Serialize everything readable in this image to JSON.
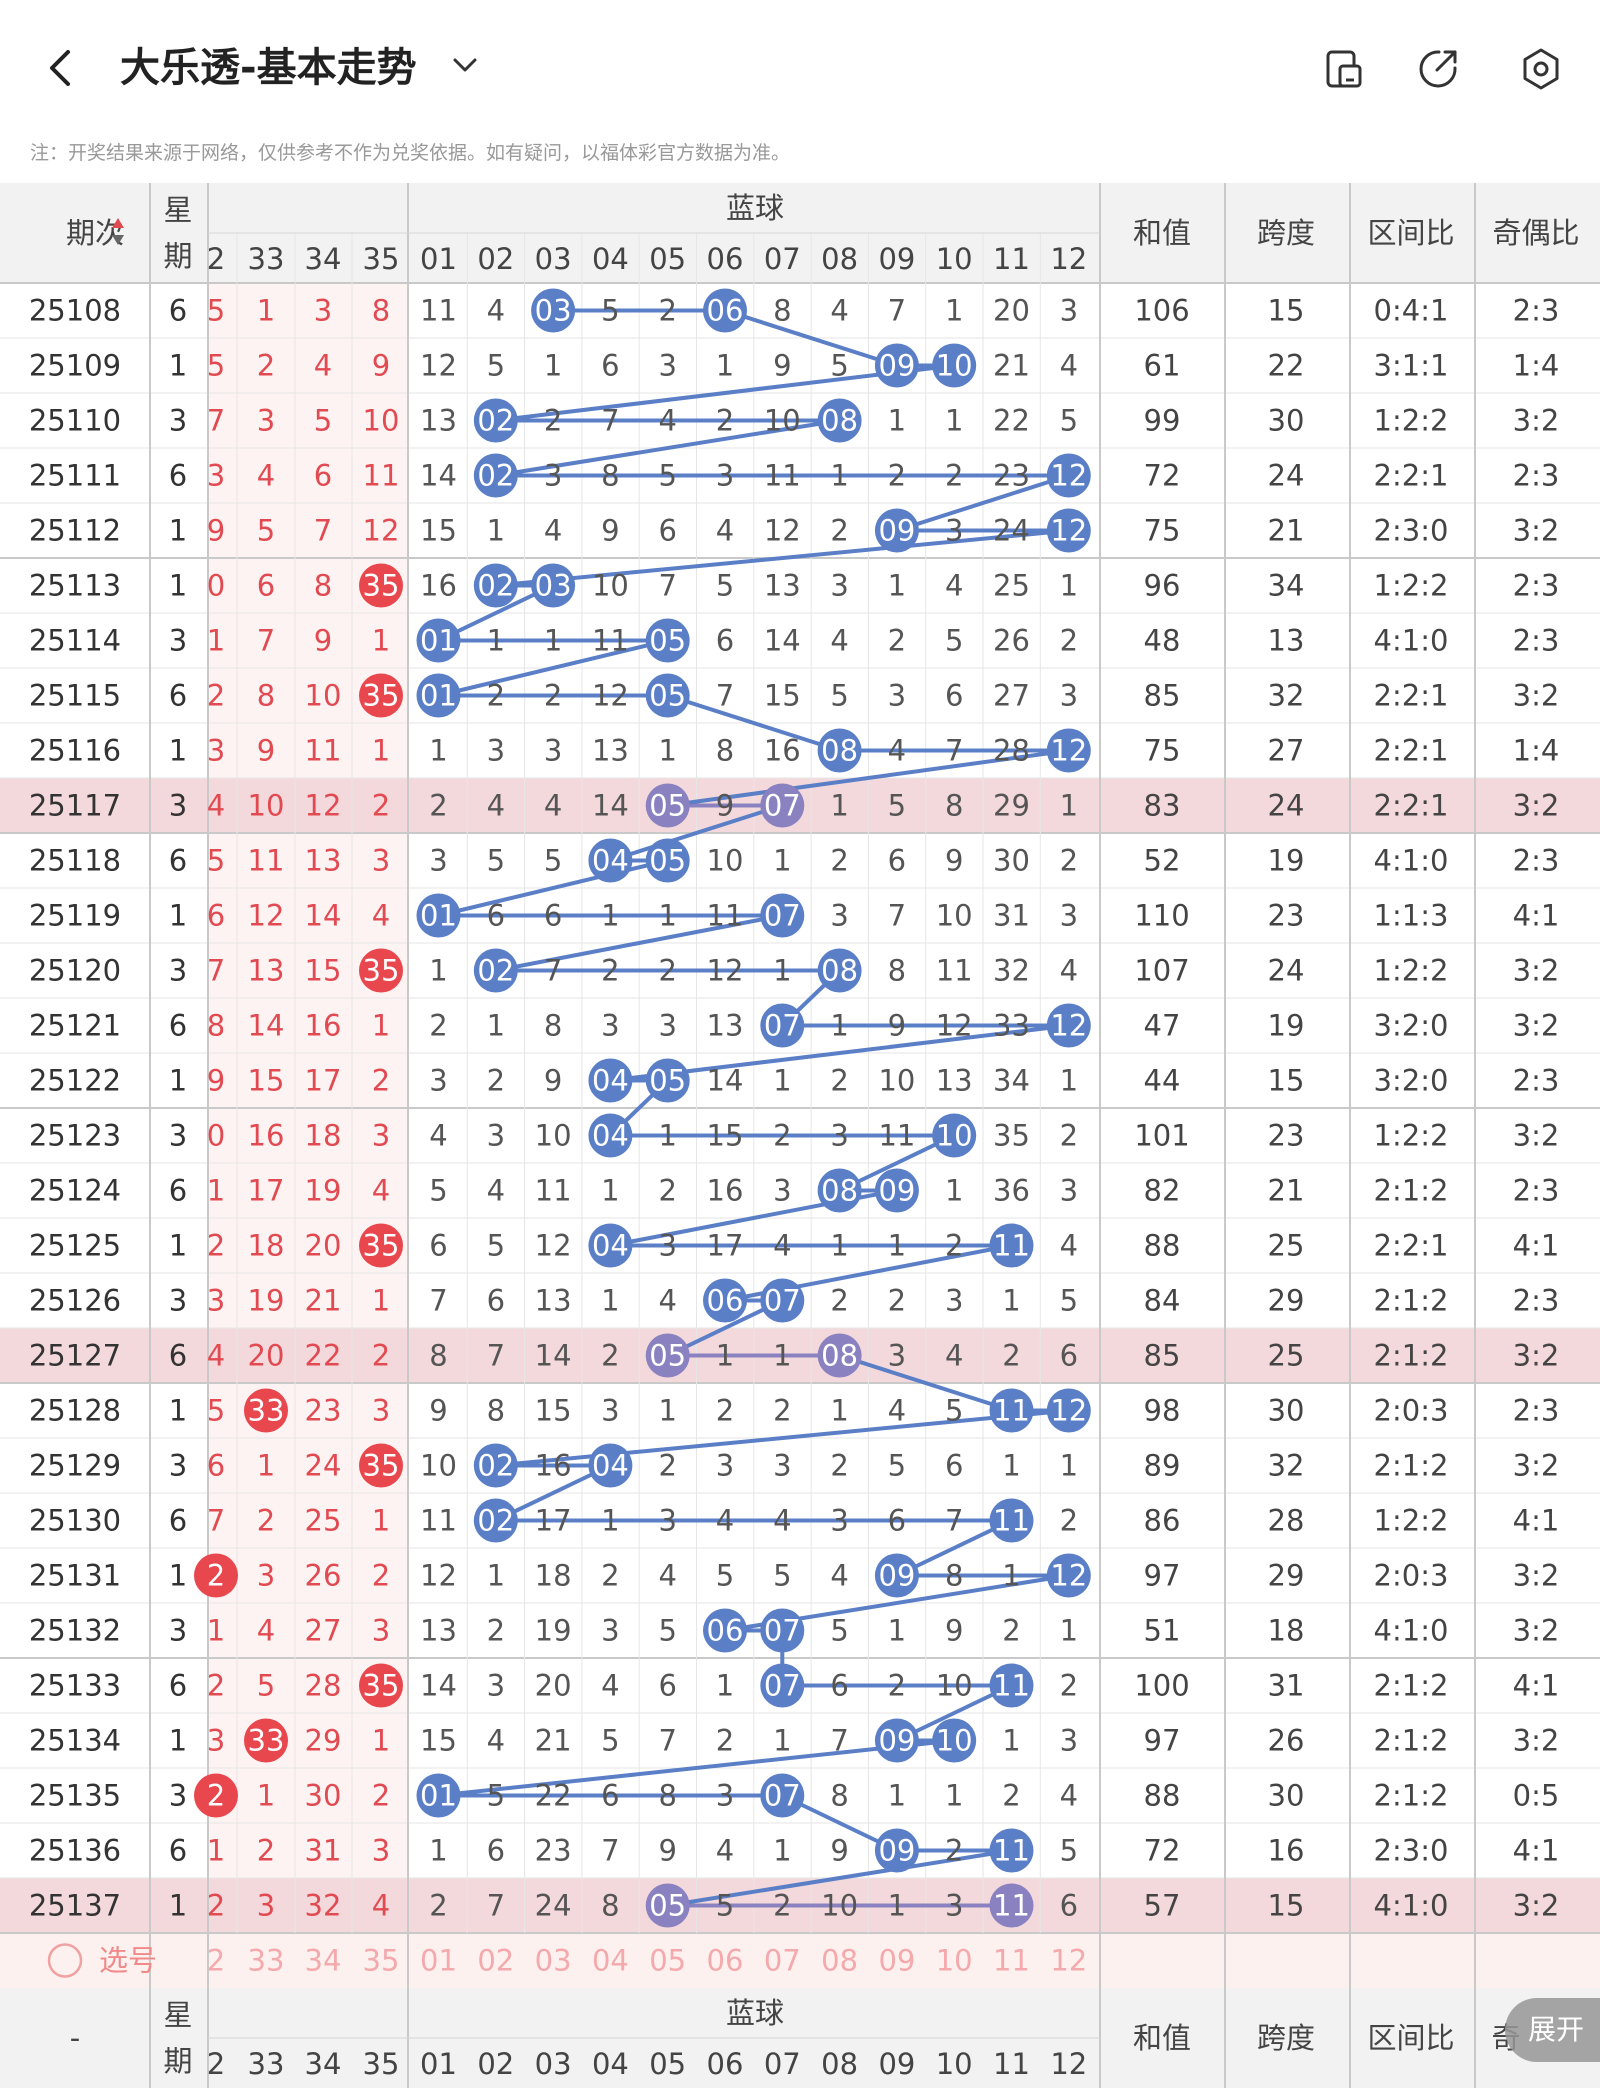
{
  "header": {
    "title": "大乐透-基本走势",
    "back_icon": "chevron-left-icon",
    "dropdown_icon": "chevron-down-icon",
    "actions": [
      "screen-split-icon",
      "share-icon",
      "settings-icon"
    ]
  },
  "notice": "注：开奖结果来源于网络，仅供参考不作为兑奖依据。如有疑问，以福体彩官方数据为准。",
  "table": {
    "col_period": "期次",
    "col_week_top": "星",
    "col_week_bottom": "期",
    "front_partial_header": "2",
    "front_headers": [
      "33",
      "34",
      "35"
    ],
    "blue_title": "蓝球",
    "blue_headers": [
      "01",
      "02",
      "03",
      "04",
      "05",
      "06",
      "07",
      "08",
      "09",
      "10",
      "11",
      "12"
    ],
    "stats_headers": [
      "和值",
      "跨度",
      "区间比",
      "奇偶比"
    ],
    "rows": [
      {
        "p": "25108",
        "w": "6",
        "pc": "5",
        "f": [
          "1",
          "3",
          "8"
        ],
        "fh": [],
        "b": [
          11,
          4,
          0,
          5,
          2,
          0,
          8,
          4,
          7,
          1,
          20,
          3
        ],
        "hits": [
          3,
          6
        ],
        "s": [
          "106",
          "15",
          "0:4:1",
          "2:3"
        ]
      },
      {
        "p": "25109",
        "w": "1",
        "pc": "5",
        "f": [
          "2",
          "4",
          "9"
        ],
        "fh": [],
        "b": [
          12,
          5,
          1,
          6,
          3,
          1,
          9,
          5,
          0,
          0,
          21,
          4
        ],
        "hits": [
          9,
          10
        ],
        "s": [
          "61",
          "22",
          "3:1:1",
          "1:4"
        ]
      },
      {
        "p": "25110",
        "w": "3",
        "pc": "7",
        "f": [
          "3",
          "5",
          "10"
        ],
        "fh": [],
        "b": [
          13,
          0,
          2,
          7,
          4,
          2,
          10,
          0,
          1,
          1,
          22,
          5
        ],
        "hits": [
          2,
          8
        ],
        "s": [
          "99",
          "30",
          "1:2:2",
          "3:2"
        ]
      },
      {
        "p": "25111",
        "w": "6",
        "pc": "3",
        "f": [
          "4",
          "6",
          "11"
        ],
        "fh": [],
        "b": [
          14,
          0,
          3,
          8,
          5,
          3,
          11,
          1,
          2,
          2,
          23,
          0
        ],
        "hits": [
          2,
          12
        ],
        "s": [
          "72",
          "24",
          "2:2:1",
          "2:3"
        ]
      },
      {
        "p": "25112",
        "w": "1",
        "pc": "9",
        "f": [
          "5",
          "7",
          "12"
        ],
        "fh": [],
        "b": [
          15,
          1,
          4,
          9,
          6,
          4,
          12,
          2,
          0,
          3,
          24,
          0
        ],
        "hits": [
          9,
          12
        ],
        "s": [
          "75",
          "21",
          "2:3:0",
          "3:2"
        ]
      },
      {
        "p": "25113",
        "w": "1",
        "pc": "0",
        "f": [
          "6",
          "8",
          "35"
        ],
        "fh": [
          2
        ],
        "b": [
          16,
          0,
          0,
          10,
          7,
          5,
          13,
          3,
          1,
          4,
          25,
          1
        ],
        "hits": [
          2,
          3
        ],
        "s": [
          "96",
          "34",
          "1:2:2",
          "2:3"
        ]
      },
      {
        "p": "25114",
        "w": "3",
        "pc": "1",
        "f": [
          "7",
          "9",
          "1"
        ],
        "fh": [],
        "b": [
          0,
          1,
          1,
          11,
          0,
          6,
          14,
          4,
          2,
          5,
          26,
          2
        ],
        "hits": [
          1,
          5
        ],
        "s": [
          "48",
          "13",
          "4:1:0",
          "2:3"
        ]
      },
      {
        "p": "25115",
        "w": "6",
        "pc": "2",
        "f": [
          "8",
          "10",
          "35"
        ],
        "fh": [
          2
        ],
        "b": [
          0,
          2,
          2,
          12,
          0,
          7,
          15,
          5,
          3,
          6,
          27,
          3
        ],
        "hits": [
          1,
          5
        ],
        "s": [
          "85",
          "32",
          "2:2:1",
          "3:2"
        ]
      },
      {
        "p": "25116",
        "w": "1",
        "pc": "3",
        "f": [
          "9",
          "11",
          "1"
        ],
        "fh": [],
        "b": [
          1,
          3,
          3,
          13,
          1,
          8,
          16,
          0,
          4,
          7,
          28,
          0
        ],
        "hits": [
          8,
          12
        ],
        "s": [
          "75",
          "27",
          "2:2:1",
          "1:4"
        ]
      },
      {
        "p": "25117",
        "w": "3",
        "pc": "4",
        "f": [
          "10",
          "12",
          "2"
        ],
        "fh": [],
        "b": [
          2,
          4,
          4,
          14,
          0,
          9,
          0,
          1,
          5,
          8,
          29,
          1
        ],
        "hits": [
          5,
          7
        ],
        "s": [
          "83",
          "24",
          "2:2:1",
          "3:2"
        ],
        "hl": true
      },
      {
        "p": "25118",
        "w": "6",
        "pc": "5",
        "f": [
          "11",
          "13",
          "3"
        ],
        "fh": [],
        "b": [
          3,
          5,
          5,
          0,
          0,
          10,
          1,
          2,
          6,
          9,
          30,
          2
        ],
        "hits": [
          4,
          5
        ],
        "s": [
          "52",
          "19",
          "4:1:0",
          "2:3"
        ]
      },
      {
        "p": "25119",
        "w": "1",
        "pc": "6",
        "f": [
          "12",
          "14",
          "4"
        ],
        "fh": [],
        "b": [
          0,
          6,
          6,
          1,
          1,
          11,
          0,
          3,
          7,
          10,
          31,
          3
        ],
        "hits": [
          1,
          7
        ],
        "s": [
          "110",
          "23",
          "1:1:3",
          "4:1"
        ]
      },
      {
        "p": "25120",
        "w": "3",
        "pc": "7",
        "f": [
          "13",
          "15",
          "35"
        ],
        "fh": [
          2
        ],
        "b": [
          1,
          0,
          7,
          2,
          2,
          12,
          1,
          0,
          8,
          11,
          32,
          4
        ],
        "hits": [
          2,
          8
        ],
        "s": [
          "107",
          "24",
          "1:2:2",
          "3:2"
        ]
      },
      {
        "p": "25121",
        "w": "6",
        "pc": "8",
        "f": [
          "14",
          "16",
          "1"
        ],
        "fh": [],
        "b": [
          2,
          1,
          8,
          3,
          3,
          13,
          0,
          1,
          9,
          12,
          33,
          0
        ],
        "hits": [
          7,
          12
        ],
        "s": [
          "47",
          "19",
          "3:2:0",
          "3:2"
        ]
      },
      {
        "p": "25122",
        "w": "1",
        "pc": "9",
        "f": [
          "15",
          "17",
          "2"
        ],
        "fh": [],
        "b": [
          3,
          2,
          9,
          0,
          0,
          14,
          1,
          2,
          10,
          13,
          34,
          1
        ],
        "hits": [
          4,
          5
        ],
        "s": [
          "44",
          "15",
          "3:2:0",
          "2:3"
        ]
      },
      {
        "p": "25123",
        "w": "3",
        "pc": "0",
        "f": [
          "16",
          "18",
          "3"
        ],
        "fh": [],
        "b": [
          4,
          3,
          10,
          0,
          1,
          15,
          2,
          3,
          11,
          0,
          35,
          2
        ],
        "hits": [
          4,
          10
        ],
        "s": [
          "101",
          "23",
          "1:2:2",
          "3:2"
        ]
      },
      {
        "p": "25124",
        "w": "6",
        "pc": "1",
        "f": [
          "17",
          "19",
          "4"
        ],
        "fh": [],
        "b": [
          5,
          4,
          11,
          1,
          2,
          16,
          3,
          0,
          0,
          1,
          36,
          3
        ],
        "hits": [
          8,
          9
        ],
        "s": [
          "82",
          "21",
          "2:1:2",
          "2:3"
        ]
      },
      {
        "p": "25125",
        "w": "1",
        "pc": "2",
        "f": [
          "18",
          "20",
          "35"
        ],
        "fh": [
          2
        ],
        "b": [
          6,
          5,
          12,
          0,
          3,
          17,
          4,
          1,
          1,
          2,
          0,
          4
        ],
        "hits": [
          4,
          11
        ],
        "s": [
          "88",
          "25",
          "2:2:1",
          "4:1"
        ]
      },
      {
        "p": "25126",
        "w": "3",
        "pc": "3",
        "f": [
          "19",
          "21",
          "1"
        ],
        "fh": [],
        "b": [
          7,
          6,
          13,
          1,
          4,
          0,
          0,
          2,
          2,
          3,
          1,
          5
        ],
        "hits": [
          6,
          7
        ],
        "s": [
          "84",
          "29",
          "2:1:2",
          "2:3"
        ]
      },
      {
        "p": "25127",
        "w": "6",
        "pc": "4",
        "f": [
          "20",
          "22",
          "2"
        ],
        "fh": [],
        "b": [
          8,
          7,
          14,
          2,
          0,
          1,
          1,
          0,
          3,
          4,
          2,
          6
        ],
        "hits": [
          5,
          8
        ],
        "s": [
          "85",
          "25",
          "2:1:2",
          "3:2"
        ],
        "hl": true
      },
      {
        "p": "25128",
        "w": "1",
        "pc": "5",
        "f": [
          "33",
          "23",
          "3"
        ],
        "fh": [
          0
        ],
        "b": [
          9,
          8,
          15,
          3,
          1,
          2,
          2,
          1,
          4,
          5,
          0,
          0
        ],
        "hits": [
          11,
          12
        ],
        "s": [
          "98",
          "30",
          "2:0:3",
          "2:3"
        ]
      },
      {
        "p": "25129",
        "w": "3",
        "pc": "6",
        "f": [
          "1",
          "24",
          "35"
        ],
        "fh": [
          2
        ],
        "b": [
          10,
          0,
          16,
          0,
          2,
          3,
          3,
          2,
          5,
          6,
          1,
          1
        ],
        "hits": [
          2,
          4
        ],
        "s": [
          "89",
          "32",
          "2:1:2",
          "3:2"
        ]
      },
      {
        "p": "25130",
        "w": "6",
        "pc": "7",
        "f": [
          "2",
          "25",
          "1"
        ],
        "fh": [],
        "b": [
          11,
          0,
          17,
          1,
          3,
          4,
          4,
          3,
          6,
          7,
          0,
          2
        ],
        "hits": [
          2,
          11
        ],
        "s": [
          "86",
          "28",
          "1:2:2",
          "4:1"
        ]
      },
      {
        "p": "25131",
        "w": "1",
        "pc": "2",
        "f": [
          "3",
          "26",
          "2"
        ],
        "fh": [],
        "pcHit": true,
        "b": [
          12,
          1,
          18,
          2,
          4,
          5,
          5,
          4,
          0,
          8,
          1,
          0
        ],
        "hits": [
          9,
          12
        ],
        "s": [
          "97",
          "29",
          "2:0:3",
          "3:2"
        ]
      },
      {
        "p": "25132",
        "w": "3",
        "pc": "1",
        "f": [
          "4",
          "27",
          "3"
        ],
        "fh": [],
        "b": [
          13,
          2,
          19,
          3,
          5,
          0,
          0,
          5,
          1,
          9,
          2,
          1
        ],
        "hits": [
          6,
          7
        ],
        "s": [
          "51",
          "18",
          "4:1:0",
          "3:2"
        ]
      },
      {
        "p": "25133",
        "w": "6",
        "pc": "2",
        "f": [
          "5",
          "28",
          "35"
        ],
        "fh": [
          2
        ],
        "b": [
          14,
          3,
          20,
          4,
          6,
          1,
          0,
          6,
          2,
          10,
          0,
          2
        ],
        "hits": [
          7,
          11
        ],
        "s": [
          "100",
          "31",
          "2:1:2",
          "4:1"
        ]
      },
      {
        "p": "25134",
        "w": "1",
        "pc": "3",
        "f": [
          "33",
          "29",
          "1"
        ],
        "fh": [
          0
        ],
        "b": [
          15,
          4,
          21,
          5,
          7,
          2,
          1,
          7,
          0,
          0,
          1,
          3
        ],
        "hits": [
          9,
          10
        ],
        "s": [
          "97",
          "26",
          "2:1:2",
          "3:2"
        ]
      },
      {
        "p": "25135",
        "w": "3",
        "pc": "2",
        "f": [
          "1",
          "30",
          "2"
        ],
        "fh": [],
        "pcHit": true,
        "b": [
          0,
          5,
          22,
          6,
          8,
          3,
          0,
          8,
          1,
          1,
          2,
          4
        ],
        "hits": [
          1,
          7
        ],
        "s": [
          "88",
          "30",
          "2:1:2",
          "0:5"
        ]
      },
      {
        "p": "25136",
        "w": "6",
        "pc": "1",
        "f": [
          "2",
          "31",
          "3"
        ],
        "fh": [],
        "b": [
          1,
          6,
          23,
          7,
          9,
          4,
          1,
          9,
          0,
          2,
          0,
          5
        ],
        "hits": [
          9,
          11
        ],
        "s": [
          "72",
          "16",
          "2:3:0",
          "4:1"
        ]
      },
      {
        "p": "25137",
        "w": "1",
        "pc": "2",
        "f": [
          "3",
          "32",
          "4"
        ],
        "fh": [],
        "b": [
          2,
          7,
          24,
          8,
          0,
          5,
          2,
          10,
          1,
          3,
          0,
          6
        ],
        "hits": [
          5,
          11
        ],
        "s": [
          "57",
          "15",
          "4:1:0",
          "3:2"
        ],
        "hl": true
      }
    ],
    "select_label": "选号",
    "select_icon": "circle-icon",
    "select_partial": "2",
    "select_front": [
      "33",
      "34",
      "35"
    ],
    "select_blue": [
      "01",
      "02",
      "03",
      "04",
      "05",
      "06",
      "07",
      "08",
      "09",
      "10",
      "11",
      "12"
    ],
    "footer_period": "-",
    "footer_stat_partial": "奇"
  },
  "expand_label": "展开",
  "colors": {
    "blue_ball": "#5b7fc7",
    "purple_ball": "#8a82c0",
    "red_ball": "#e8474e",
    "red_text": "#e24a52",
    "row_highlight": "#f4d9dc",
    "select_bg": "#fdf1ef"
  }
}
